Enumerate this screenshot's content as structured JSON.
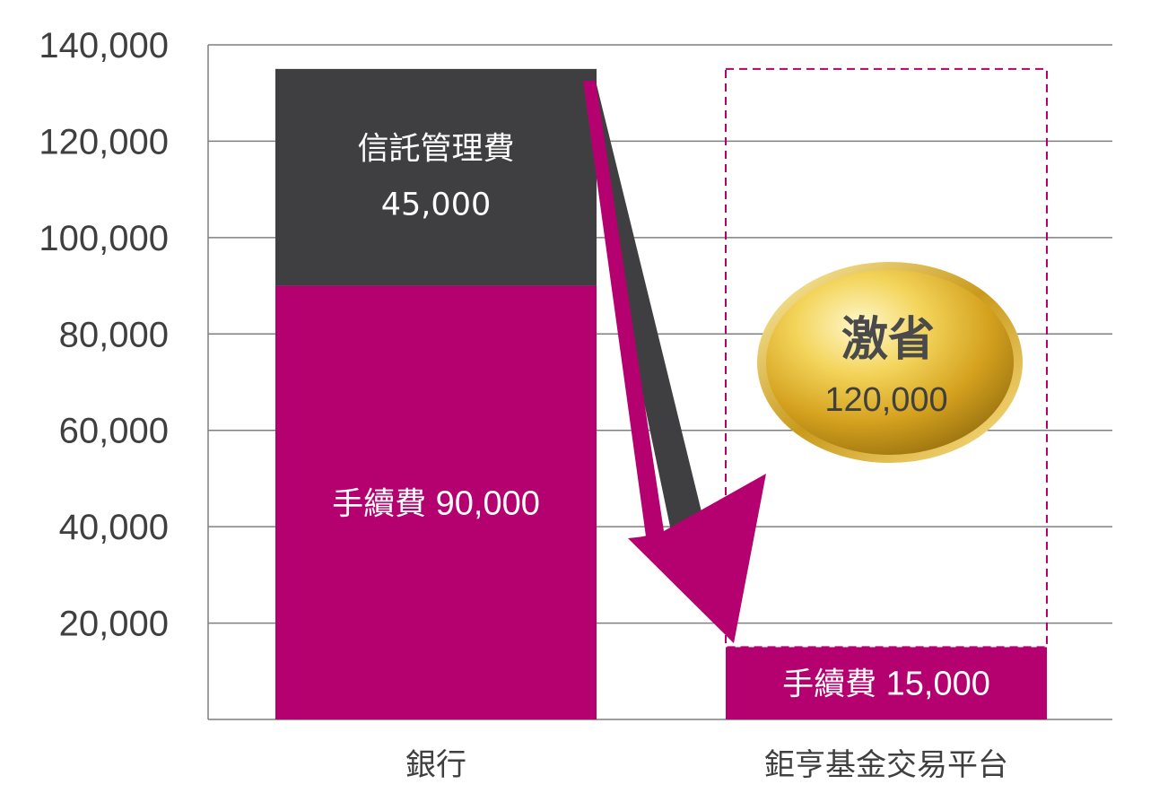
{
  "chart_data": {
    "type": "bar",
    "stacked": true,
    "ylim": [
      0,
      140000
    ],
    "yticks": [
      "20,000",
      "40,000",
      "60,000",
      "80,000",
      "100,000",
      "120,000",
      "140,000"
    ],
    "ytick_values": [
      20000,
      40000,
      60000,
      80000,
      100000,
      120000,
      140000
    ],
    "grid": true,
    "categories": [
      "銀行",
      "鉅亨基金交易平台"
    ],
    "segments": [
      {
        "category": 0,
        "start": 0,
        "value": 90000,
        "color": "#b5006f",
        "label_name": "手續費",
        "label_value": "90,000",
        "layout": "inline"
      },
      {
        "category": 0,
        "start": 90000,
        "value": 45000,
        "color": "#3f3f41",
        "label_name": "信託管理費",
        "label_value": "45,000",
        "layout": "stacked"
      },
      {
        "category": 1,
        "start": 0,
        "value": 15000,
        "color": "#b5006f",
        "label_name": "手續費",
        "label_value": "15,000",
        "layout": "inline"
      }
    ],
    "savings_outline": {
      "category": 1,
      "from": 15000,
      "to": 135000,
      "color": "#b5006f"
    },
    "annotation": {
      "title": "激省",
      "value": "120,000"
    }
  }
}
